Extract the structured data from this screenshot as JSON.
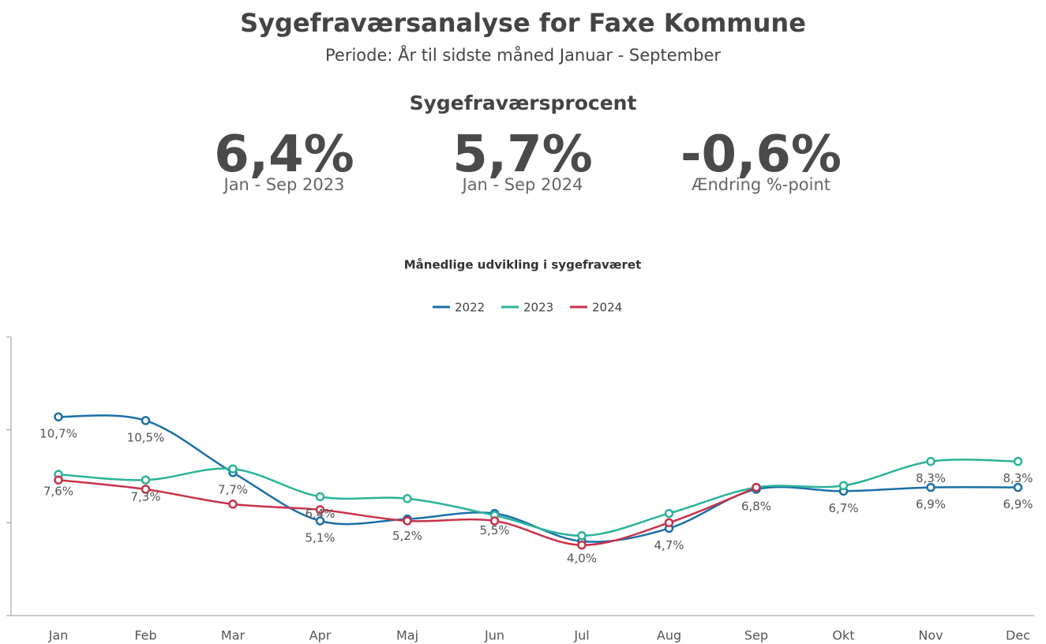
{
  "header": {
    "title": "Sygefraværsanalyse for Faxe Kommune",
    "subtitle": "Periode: År til sidste måned Januar - September"
  },
  "kpi": {
    "title": "Sygefraværsprocent",
    "cards": [
      {
        "value": "6,4%",
        "label": "Jan - Sep 2023"
      },
      {
        "value": "5,7%",
        "label": "Jan - Sep 2024"
      },
      {
        "value": "-0,6%",
        "label": "Ændring %-point"
      }
    ]
  },
  "chart_data": {
    "type": "line",
    "title": "Månedlige udvikling i sygefraværet",
    "categories": [
      "Jan",
      "Feb",
      "Mar",
      "Apr",
      "Maj",
      "Jun",
      "Jul",
      "Aug",
      "Sep",
      "Okt",
      "Nov",
      "Dec"
    ],
    "ylim": [
      0,
      15
    ],
    "yticks": [
      0,
      5,
      10,
      15
    ],
    "legend": "top",
    "series": [
      {
        "name": "2022",
        "color": "#1b6fa8",
        "values": [
          10.7,
          10.5,
          7.7,
          5.1,
          5.2,
          5.5,
          4.0,
          4.7,
          6.8,
          6.7,
          6.9,
          6.9
        ],
        "value_labels": [
          "10,7%",
          "10,5%",
          "7,7%",
          "5,1%",
          "5,2%",
          "5,5%",
          "4,0%",
          "4,7%",
          "6,8%",
          "6,7%",
          "6,9%",
          "6,9%"
        ]
      },
      {
        "name": "2023",
        "color": "#2bb39a",
        "values": [
          7.6,
          7.3,
          7.9,
          6.4,
          6.3,
          5.4,
          4.3,
          5.5,
          6.9,
          7.0,
          8.3,
          8.3
        ],
        "value_labels": [
          "7,6%",
          "7,3%",
          null,
          "6,4%",
          null,
          null,
          null,
          null,
          null,
          null,
          "8,3%",
          "8,3%"
        ]
      },
      {
        "name": "2024",
        "color": "#c8324a",
        "values": [
          7.3,
          6.8,
          6.0,
          5.7,
          5.1,
          5.1,
          3.8,
          5.0,
          6.9,
          null,
          null,
          null
        ]
      }
    ]
  }
}
